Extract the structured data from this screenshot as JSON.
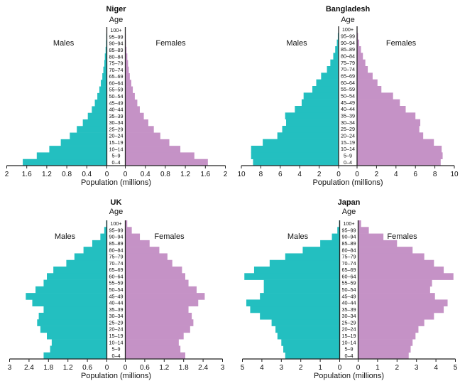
{
  "colors": {
    "male": "#23bfc0",
    "female": "#c592c6",
    "axis": "#222222",
    "label_bg": "#ffffff"
  },
  "age_groups": [
    "0–4",
    "5–9",
    "10–14",
    "15–19",
    "20–24",
    "25–29",
    "30–34",
    "35–39",
    "40–44",
    "45–49",
    "50–54",
    "55–59",
    "60–64",
    "65–69",
    "70–74",
    "75–79",
    "80–84",
    "85–89",
    "90–94",
    "95–99",
    "100+"
  ],
  "chart_data": [
    {
      "type": "bar",
      "orientation": "horizontal-pyramid",
      "title": "Niger",
      "age_label": "Age",
      "left_label": "Males",
      "right_label": "Females",
      "xlabel": "Population (millions)",
      "xmax": 2,
      "tick_values": [
        2,
        1.6,
        1.2,
        0.8,
        0.4,
        0,
        0.4,
        0.8,
        1.2,
        1.6,
        2
      ],
      "tick_labels": [
        "2",
        "1.6",
        "1.2",
        "0.8",
        "0.4",
        "0",
        "0.4",
        "0.8",
        "1.2",
        "1.6",
        "2"
      ],
      "series": [
        {
          "name": "Males",
          "values": [
            1.68,
            1.4,
            1.15,
            0.92,
            0.74,
            0.6,
            0.48,
            0.38,
            0.3,
            0.24,
            0.19,
            0.15,
            0.12,
            0.09,
            0.07,
            0.05,
            0.04,
            0.025,
            0.015,
            0.01,
            0.005
          ]
        },
        {
          "name": "Females",
          "values": [
            1.65,
            1.38,
            1.1,
            0.88,
            0.7,
            0.57,
            0.46,
            0.37,
            0.29,
            0.24,
            0.19,
            0.15,
            0.12,
            0.09,
            0.07,
            0.055,
            0.04,
            0.025,
            0.015,
            0.01,
            0.005
          ]
        }
      ]
    },
    {
      "type": "bar",
      "orientation": "horizontal-pyramid",
      "title": "Bangladesh",
      "age_label": "Age",
      "left_label": "Males",
      "right_label": "Females",
      "xlabel": "Population (millions)",
      "xmax": 10,
      "tick_values": [
        10,
        8,
        6,
        4,
        2,
        0,
        2,
        4,
        6,
        8,
        10
      ],
      "tick_labels": [
        "10",
        "8",
        "6",
        "4",
        "2",
        "0",
        "2",
        "4",
        "6",
        "8",
        "10"
      ],
      "series": [
        {
          "name": "Males",
          "values": [
            8.8,
            9.0,
            9.0,
            7.8,
            6.3,
            5.8,
            5.4,
            5.5,
            4.5,
            3.8,
            3.6,
            2.7,
            2.3,
            1.8,
            1.2,
            0.85,
            0.55,
            0.35,
            0.18,
            0.08,
            0.03
          ]
        },
        {
          "name": "Females",
          "values": [
            8.6,
            8.8,
            8.7,
            7.9,
            6.8,
            6.4,
            6.5,
            6.0,
            5.0,
            4.4,
            3.7,
            2.5,
            2.1,
            1.6,
            1.1,
            0.85,
            0.6,
            0.4,
            0.22,
            0.1,
            0.04
          ]
        }
      ]
    },
    {
      "type": "bar",
      "orientation": "horizontal-pyramid",
      "title": "UK",
      "age_label": "Age",
      "left_label": "Males",
      "right_label": "Females",
      "xlabel": "Population (millions)",
      "xmax": 3,
      "tick_values": [
        3,
        2.4,
        1.8,
        1.2,
        0.6,
        0,
        0.6,
        1.2,
        1.8,
        2.4,
        3
      ],
      "tick_labels": [
        "3",
        "2.4",
        "1.8",
        "1.2",
        "0.6",
        "0",
        "0.6",
        "1.2",
        "1.8",
        "2.4",
        "3"
      ],
      "series": [
        {
          "name": "Males",
          "values": [
            1.95,
            1.75,
            1.7,
            1.85,
            2.05,
            2.15,
            2.1,
            1.95,
            2.3,
            2.5,
            2.2,
            1.95,
            1.85,
            1.65,
            1.25,
            1.0,
            0.72,
            0.45,
            0.2,
            0.08,
            0.02
          ]
        },
        {
          "name": "Females",
          "values": [
            1.85,
            1.7,
            1.65,
            1.8,
            2.0,
            2.1,
            2.05,
            1.95,
            2.25,
            2.45,
            2.2,
            1.95,
            1.85,
            1.75,
            1.45,
            1.3,
            1.05,
            0.75,
            0.45,
            0.2,
            0.06
          ]
        }
      ]
    },
    {
      "type": "bar",
      "orientation": "horizontal-pyramid",
      "title": "Japan",
      "age_label": "Age",
      "left_label": "Males",
      "right_label": "Females",
      "xlabel": "Population (millions)",
      "xmax": 5,
      "tick_values": [
        5,
        4,
        3,
        2,
        1,
        0,
        1,
        2,
        3,
        4,
        5
      ],
      "tick_labels": [
        "5",
        "4",
        "3",
        "2",
        "1",
        "0",
        "1",
        "2",
        "3",
        "4",
        "5"
      ],
      "series": [
        {
          "name": "Males",
          "values": [
            2.8,
            2.9,
            3.0,
            3.2,
            3.3,
            3.5,
            4.1,
            4.6,
            4.8,
            4.1,
            3.9,
            3.9,
            4.9,
            4.4,
            3.6,
            2.8,
            1.9,
            1.0,
            0.4,
            0.12,
            0.03
          ]
        },
        {
          "name": "Females",
          "values": [
            2.6,
            2.7,
            2.8,
            2.95,
            3.1,
            3.4,
            3.9,
            4.4,
            4.6,
            3.95,
            3.7,
            3.8,
            4.9,
            4.4,
            3.9,
            3.4,
            2.8,
            2.0,
            1.3,
            0.55,
            0.15
          ]
        }
      ]
    }
  ]
}
